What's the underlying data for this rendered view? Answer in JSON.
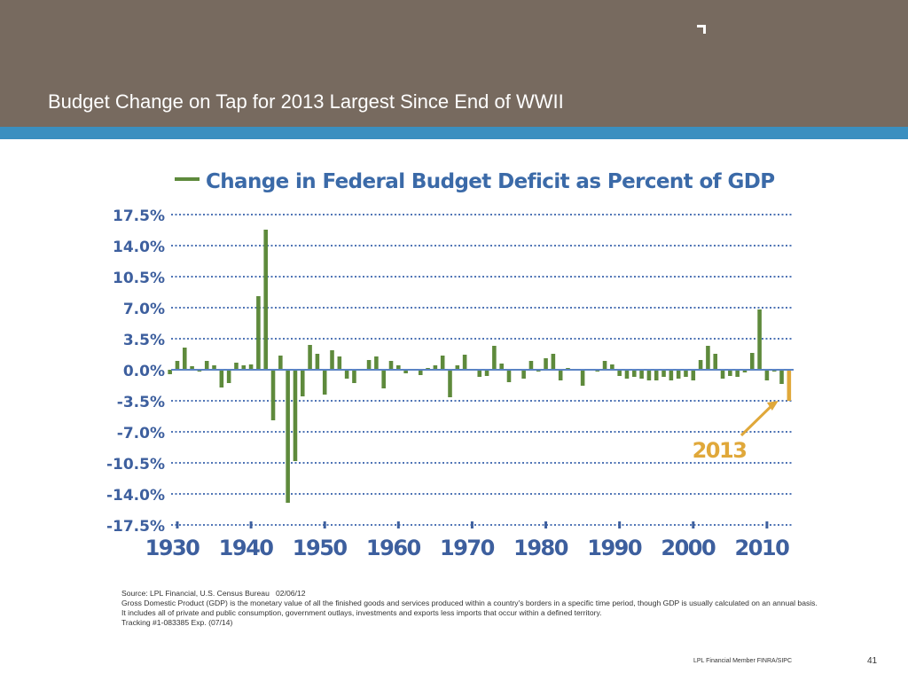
{
  "header": {
    "title": "Budget Change on Tap for 2013 Largest Since End of WWII"
  },
  "chart_data": {
    "type": "bar",
    "x": [
      1929,
      1930,
      1931,
      1932,
      1933,
      1934,
      1935,
      1936,
      1937,
      1938,
      1939,
      1940,
      1941,
      1942,
      1943,
      1944,
      1945,
      1946,
      1947,
      1948,
      1949,
      1950,
      1951,
      1952,
      1953,
      1954,
      1955,
      1956,
      1957,
      1958,
      1959,
      1960,
      1961,
      1962,
      1963,
      1964,
      1965,
      1966,
      1967,
      1968,
      1969,
      1970,
      1971,
      1972,
      1973,
      1974,
      1975,
      1976,
      1977,
      1978,
      1979,
      1980,
      1981,
      1982,
      1983,
      1984,
      1985,
      1986,
      1987,
      1988,
      1989,
      1990,
      1991,
      1992,
      1993,
      1994,
      1995,
      1996,
      1997,
      1998,
      1999,
      2000,
      2001,
      2002,
      2003,
      2004,
      2005,
      2006,
      2007,
      2008,
      2009,
      2010,
      2011,
      2012,
      2013
    ],
    "series": [
      {
        "name": "Change in Federal Budget Deficit as Percent of GDP",
        "color": "#5e8a3c",
        "values": [
          -0.5,
          1.0,
          2.5,
          0.4,
          -0.2,
          1.0,
          0.5,
          -2.0,
          -1.5,
          0.8,
          0.5,
          0.6,
          8.3,
          15.8,
          -5.7,
          1.6,
          -15.0,
          -10.3,
          -3.0,
          2.8,
          1.8,
          -2.8,
          2.2,
          1.5,
          -1.0,
          -1.5,
          0.0,
          1.1,
          1.5,
          -2.1,
          1.0,
          0.5,
          -0.4,
          0.0,
          -0.6,
          0.2,
          0.5,
          1.6,
          -3.1,
          0.5,
          1.7,
          0.0,
          -0.8,
          -0.7,
          2.7,
          0.7,
          -1.4,
          0.0,
          -1.0,
          1.0,
          -0.2,
          1.3,
          1.8,
          -1.2,
          0.2,
          0.0,
          -1.8,
          0.0,
          -0.2,
          1.0,
          0.6,
          -0.7,
          -1.0,
          -0.8,
          -1.0,
          -1.2,
          -1.2,
          -0.8,
          -1.2,
          -1.0,
          -0.8,
          -1.2,
          1.1,
          2.7,
          1.8,
          -1.0,
          -0.7,
          -0.8,
          -0.3,
          1.9,
          6.8,
          -1.2,
          -0.2,
          -1.6,
          -3.5
        ]
      }
    ],
    "annotation": {
      "text": "2013",
      "x": 2013,
      "color": "#e0a83a"
    },
    "xlim": [
      1928.5,
      2013.5
    ],
    "xticks": [
      1930,
      1940,
      1950,
      1960,
      1970,
      1980,
      1990,
      2000,
      2010
    ],
    "ylim": [
      -17.5,
      17.5
    ],
    "yticks": [
      {
        "value": 17.5,
        "label": "17.5%"
      },
      {
        "value": 14.0,
        "label": "14.0%"
      },
      {
        "value": 10.5,
        "label": "10.5%"
      },
      {
        "value": 7.0,
        "label": "7.0%"
      },
      {
        "value": 3.5,
        "label": "3.5%"
      },
      {
        "value": 0.0,
        "label": "0.0%"
      },
      {
        "value": -3.5,
        "label": "-3.5%"
      },
      {
        "value": -7.0,
        "label": "-7.0%"
      },
      {
        "value": -10.5,
        "label": "-10.5%"
      },
      {
        "value": -14.0,
        "label": "-14.0%"
      },
      {
        "value": -17.5,
        "label": "-17.5%"
      }
    ],
    "grid": true
  },
  "notes": [
    "Source: LPL Financial, U.S. Census Bureau   02/06/12",
    "Gross Domestic Product (GDP) is the monetary value of all the finished goods and services produced within a country's borders in a specific time period, though GDP is usually calculated on an annual basis. It includes all of private and public consumption, government outlays, investments and exports less imports that occur within a defined territory.",
    "Tracking #1-083385 Exp. (07/14)"
  ],
  "footer": {
    "member": "LPL Financial Member FINRA/SIPC",
    "page": "41"
  }
}
